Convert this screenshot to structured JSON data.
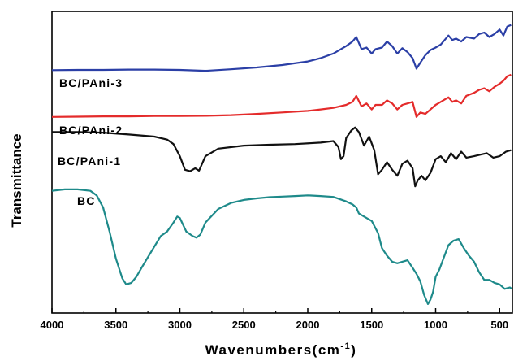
{
  "chart_data": {
    "type": "line",
    "xlabel": "Wavenumbers(cm",
    "xlabel_sup": "-1",
    "xlabel_end": ")",
    "ylabel": "Transmittance",
    "xlim": [
      4000,
      400
    ],
    "x_reversed": true,
    "yaxis_ticks": false,
    "grid": false,
    "legend": "inline series labels",
    "x_ticks": [
      4000,
      3500,
      3000,
      2500,
      2000,
      1500,
      1000,
      500
    ],
    "x_tick_labels": [
      "4000",
      "3500",
      "3000",
      "2500",
      "2000",
      "1500",
      "1000",
      "500"
    ],
    "series": [
      {
        "name": "BC/PAni-3",
        "color": "#2b3fa6",
        "x": [
          4000,
          3800,
          3600,
          3400,
          3200,
          3000,
          2800,
          2600,
          2400,
          2200,
          2000,
          1900,
          1800,
          1700,
          1650,
          1620,
          1580,
          1540,
          1500,
          1470,
          1420,
          1380,
          1340,
          1300,
          1260,
          1220,
          1180,
          1150,
          1120,
          1080,
          1040,
          1000,
          960,
          900,
          870,
          840,
          800,
          760,
          700,
          660,
          620,
          580,
          540,
          500,
          470,
          440,
          410
        ],
        "y": [
          0.805,
          0.806,
          0.806,
          0.807,
          0.807,
          0.806,
          0.803,
          0.808,
          0.814,
          0.822,
          0.834,
          0.845,
          0.86,
          0.885,
          0.9,
          0.915,
          0.875,
          0.88,
          0.86,
          0.875,
          0.88,
          0.9,
          0.885,
          0.86,
          0.878,
          0.865,
          0.845,
          0.81,
          0.83,
          0.855,
          0.872,
          0.88,
          0.89,
          0.92,
          0.905,
          0.91,
          0.9,
          0.915,
          0.91,
          0.925,
          0.93,
          0.915,
          0.925,
          0.94,
          0.92,
          0.95,
          0.955
        ]
      },
      {
        "name": "BC/PAni-2",
        "color": "#e42b2b",
        "x": [
          4000,
          3800,
          3600,
          3400,
          3200,
          3000,
          2800,
          2600,
          2400,
          2200,
          2000,
          1900,
          1800,
          1700,
          1650,
          1620,
          1580,
          1540,
          1500,
          1470,
          1420,
          1380,
          1340,
          1300,
          1260,
          1220,
          1180,
          1150,
          1120,
          1080,
          1040,
          1000,
          960,
          900,
          870,
          840,
          800,
          760,
          700,
          660,
          620,
          580,
          540,
          500,
          470,
          440,
          410
        ],
        "y": [
          0.65,
          0.651,
          0.652,
          0.652,
          0.653,
          0.653,
          0.654,
          0.656,
          0.66,
          0.665,
          0.67,
          0.675,
          0.68,
          0.69,
          0.7,
          0.72,
          0.685,
          0.695,
          0.675,
          0.69,
          0.69,
          0.705,
          0.695,
          0.675,
          0.69,
          0.695,
          0.7,
          0.65,
          0.665,
          0.66,
          0.675,
          0.69,
          0.7,
          0.715,
          0.7,
          0.705,
          0.695,
          0.72,
          0.73,
          0.74,
          0.745,
          0.735,
          0.75,
          0.76,
          0.77,
          0.785,
          0.79
        ]
      },
      {
        "name": "BC/PAni-1",
        "color": "#111111",
        "x": [
          4000,
          3800,
          3600,
          3400,
          3200,
          3100,
          3050,
          3000,
          2960,
          2920,
          2880,
          2850,
          2800,
          2700,
          2500,
          2300,
          2100,
          1900,
          1800,
          1760,
          1740,
          1720,
          1700,
          1660,
          1630,
          1600,
          1560,
          1520,
          1480,
          1450,
          1420,
          1380,
          1340,
          1300,
          1260,
          1220,
          1180,
          1160,
          1140,
          1110,
          1080,
          1040,
          1000,
          960,
          920,
          880,
          840,
          800,
          760,
          700,
          650,
          600,
          550,
          500,
          450,
          410
        ],
        "y": [
          0.6,
          0.6,
          0.598,
          0.592,
          0.585,
          0.575,
          0.56,
          0.52,
          0.475,
          0.47,
          0.48,
          0.472,
          0.52,
          0.545,
          0.555,
          0.558,
          0.56,
          0.565,
          0.57,
          0.55,
          0.51,
          0.52,
          0.58,
          0.605,
          0.615,
          0.6,
          0.555,
          0.585,
          0.54,
          0.46,
          0.475,
          0.5,
          0.475,
          0.455,
          0.495,
          0.505,
          0.48,
          0.42,
          0.44,
          0.455,
          0.44,
          0.465,
          0.51,
          0.52,
          0.5,
          0.53,
          0.51,
          0.535,
          0.515,
          0.52,
          0.525,
          0.53,
          0.515,
          0.52,
          0.535,
          0.54
        ]
      },
      {
        "name": "BC",
        "color": "#1e8a8a",
        "x": [
          4000,
          3900,
          3800,
          3700,
          3650,
          3600,
          3550,
          3500,
          3450,
          3420,
          3380,
          3340,
          3300,
          3250,
          3200,
          3150,
          3100,
          3050,
          3020,
          3000,
          2950,
          2900,
          2870,
          2840,
          2800,
          2700,
          2600,
          2500,
          2400,
          2300,
          2200,
          2100,
          2000,
          1900,
          1800,
          1700,
          1650,
          1620,
          1600,
          1560,
          1500,
          1450,
          1420,
          1380,
          1340,
          1300,
          1260,
          1220,
          1180,
          1150,
          1120,
          1090,
          1060,
          1040,
          1020,
          1000,
          970,
          940,
          900,
          860,
          820,
          780,
          740,
          700,
          660,
          620,
          580,
          540,
          500,
          460,
          420,
          405
        ],
        "y": [
          0.405,
          0.41,
          0.41,
          0.405,
          0.39,
          0.35,
          0.27,
          0.18,
          0.115,
          0.095,
          0.1,
          0.12,
          0.15,
          0.185,
          0.22,
          0.255,
          0.27,
          0.3,
          0.32,
          0.315,
          0.27,
          0.255,
          0.25,
          0.26,
          0.3,
          0.345,
          0.365,
          0.375,
          0.38,
          0.384,
          0.386,
          0.388,
          0.39,
          0.388,
          0.385,
          0.37,
          0.36,
          0.35,
          0.33,
          0.32,
          0.305,
          0.265,
          0.215,
          0.19,
          0.17,
          0.165,
          0.17,
          0.175,
          0.15,
          0.13,
          0.105,
          0.06,
          0.03,
          0.045,
          0.07,
          0.12,
          0.145,
          0.18,
          0.225,
          0.24,
          0.245,
          0.215,
          0.19,
          0.17,
          0.135,
          0.11,
          0.11,
          0.1,
          0.095,
          0.08,
          0.085,
          0.08
        ]
      }
    ],
    "series_labels_shown": [
      "BC/PAni-3",
      "BC/PAni-2",
      "BC/PAni-1",
      "BC"
    ]
  }
}
